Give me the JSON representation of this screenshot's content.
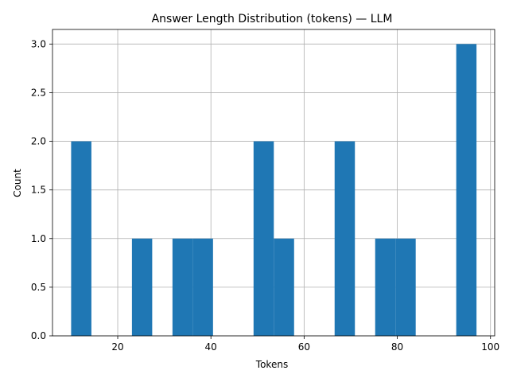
{
  "chart_data": {
    "type": "bar",
    "title": "Answer Length Distribution (tokens) — LLM",
    "xlabel": "Tokens",
    "ylabel": "Count",
    "xlim": [
      6,
      100.9
    ],
    "ylim": [
      0,
      3.15
    ],
    "x_ticks": [
      20,
      40,
      60,
      80,
      100
    ],
    "y_ticks": [
      0.0,
      0.5,
      1.0,
      1.5,
      2.0,
      2.5,
      3.0
    ],
    "grid": true,
    "bar_color": "#1f77b4",
    "bins": [
      {
        "x0": 10.0,
        "x1": 14.35,
        "count": 2
      },
      {
        "x0": 14.35,
        "x1": 18.7,
        "count": 0
      },
      {
        "x0": 18.7,
        "x1": 23.05,
        "count": 0
      },
      {
        "x0": 23.05,
        "x1": 27.4,
        "count": 1
      },
      {
        "x0": 27.4,
        "x1": 31.75,
        "count": 0
      },
      {
        "x0": 31.75,
        "x1": 36.1,
        "count": 1
      },
      {
        "x0": 36.1,
        "x1": 40.45,
        "count": 1
      },
      {
        "x0": 40.45,
        "x1": 44.8,
        "count": 0
      },
      {
        "x0": 44.8,
        "x1": 49.15,
        "count": 0
      },
      {
        "x0": 49.15,
        "x1": 53.5,
        "count": 2
      },
      {
        "x0": 53.5,
        "x1": 57.85,
        "count": 1
      },
      {
        "x0": 57.85,
        "x1": 62.2,
        "count": 0
      },
      {
        "x0": 62.2,
        "x1": 66.55,
        "count": 0
      },
      {
        "x0": 66.55,
        "x1": 70.9,
        "count": 2
      },
      {
        "x0": 70.9,
        "x1": 75.25,
        "count": 0
      },
      {
        "x0": 75.25,
        "x1": 79.6,
        "count": 1
      },
      {
        "x0": 79.6,
        "x1": 83.95,
        "count": 1
      },
      {
        "x0": 83.95,
        "x1": 88.3,
        "count": 0
      },
      {
        "x0": 88.3,
        "x1": 92.65,
        "count": 0
      },
      {
        "x0": 92.65,
        "x1": 97.0,
        "count": 3
      }
    ]
  }
}
